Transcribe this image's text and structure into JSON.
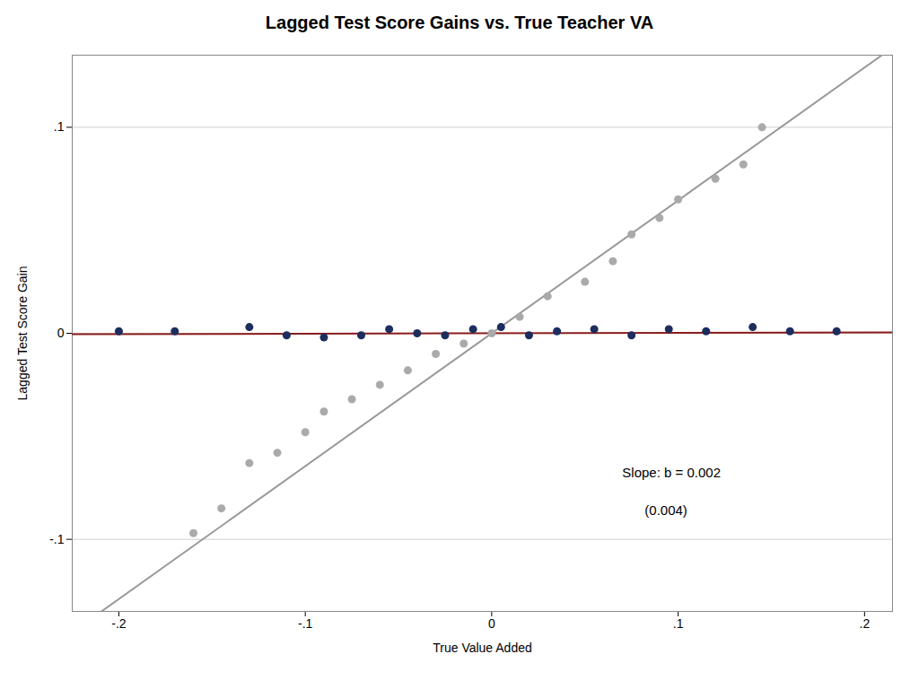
{
  "chart_data": {
    "type": "scatter",
    "title": "Lagged Test Score Gains vs. True Teacher VA",
    "xlabel": "True Value Added",
    "ylabel": "Lagged Test Score Gain",
    "xlim": [
      -0.225,
      0.215
    ],
    "ylim": [
      -0.135,
      0.135
    ],
    "xticks": [
      {
        "value": -0.2,
        "label": "-.2"
      },
      {
        "value": -0.1,
        "label": "-.1"
      },
      0,
      {
        "value": 0.1,
        "label": ".1"
      },
      {
        "value": 0.2,
        "label": ".2"
      }
    ],
    "yticks": [
      {
        "value": -0.1,
        "label": "-.1"
      },
      0,
      {
        "value": 0.1,
        "label": ".1"
      }
    ],
    "grid": "y",
    "series": [
      {
        "type": "line",
        "color": "#999999",
        "slope": 0.645,
        "intercept": 0.0
      },
      {
        "type": "line",
        "color": "#8b1c1c",
        "slope": 0.002,
        "intercept": 0.0
      },
      {
        "type": "scatter",
        "color": "#aaaaaa",
        "x": [
          -0.16,
          -0.145,
          -0.13,
          -0.115,
          -0.1,
          -0.09,
          -0.075,
          -0.06,
          -0.045,
          -0.03,
          -0.015,
          0.0,
          0.015,
          0.03,
          0.05,
          0.065,
          0.075,
          0.09,
          0.1,
          0.12,
          0.135,
          0.145
        ],
        "y": [
          -0.097,
          -0.085,
          -0.063,
          -0.058,
          -0.048,
          -0.038,
          -0.032,
          -0.025,
          -0.018,
          -0.01,
          -0.005,
          0.0,
          0.008,
          0.018,
          0.025,
          0.035,
          0.048,
          0.056,
          0.065,
          0.075,
          0.082,
          0.1
        ]
      },
      {
        "type": "scatter",
        "color": "#1c2d5e",
        "x": [
          -0.2,
          -0.17,
          -0.13,
          -0.11,
          -0.09,
          -0.07,
          -0.055,
          -0.04,
          -0.025,
          -0.01,
          0.005,
          0.02,
          0.035,
          0.055,
          0.075,
          0.095,
          0.115,
          0.14,
          0.16,
          0.185
        ],
        "y": [
          0.001,
          0.001,
          0.003,
          -0.001,
          -0.002,
          -0.001,
          0.002,
          0.0,
          -0.001,
          0.002,
          0.003,
          -0.001,
          0.001,
          0.002,
          -0.001,
          0.002,
          0.001,
          0.003,
          0.001,
          0.001
        ]
      }
    ],
    "annotations": [
      {
        "text": "Slope: b = 0.002",
        "x": 0.07,
        "y": -0.068
      },
      {
        "text": "      (0.004)",
        "x": 0.07,
        "y": -0.086
      }
    ]
  }
}
